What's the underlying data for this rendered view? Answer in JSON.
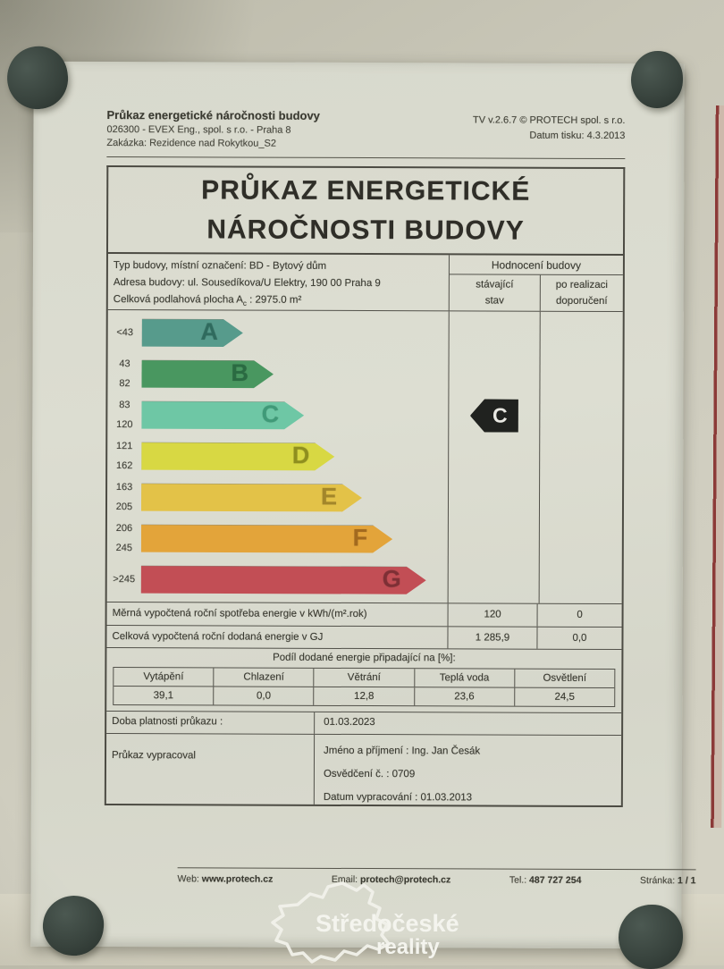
{
  "scene": {
    "wall_color": "#c8c6b7",
    "paper_color": "#d8d9cd",
    "magnet_color": "#39443e",
    "adjacent_frame_color": "#8c3a38"
  },
  "doc_header": {
    "title": "Průkaz energetické náročnosti budovy",
    "company": "026300 - EVEX Eng., spol. s r.o. - Praha 8",
    "order": "Zakázka: Rezidence nad Rokytkou_S2",
    "version": "TV v.2.6.7 © PROTECH spol. s r.o.",
    "print_date": "Datum tisku: 4.3.2013"
  },
  "main_title": {
    "line1": "PRŮKAZ ENERGETICKÉ",
    "line2": "NÁROČNOSTI BUDOVY"
  },
  "building_info": {
    "type_line": "Typ budovy, místní označení: BD - Bytový dům",
    "address_line": "Adresa budovy: ul. Sousedíkova/U Elektry, 190 00 Praha 9",
    "area_prefix": "Celková podlahová plocha A",
    "area_sub": "c",
    "area_suffix": " : 2975.0 m²"
  },
  "rating_header": {
    "title": "Hodnocení budovy",
    "current_line1": "stávající",
    "current_line2": "stav",
    "recommended_line1": "po realizaci",
    "recommended_line2": "doporučení"
  },
  "chart_data": {
    "type": "bar",
    "title": "Energetická náročnost budovy — třídy A až G v kWh/(m².rok)",
    "categories": [
      "A",
      "B",
      "C",
      "D",
      "E",
      "F",
      "G"
    ],
    "ranges": [
      "<43",
      "43–82",
      "83–120",
      "121–162",
      "163–205",
      "206–245",
      ">245"
    ],
    "colors": [
      "#579b8c",
      "#499760",
      "#6ec7a5",
      "#d8d843",
      "#e3c248",
      "#e3a43a",
      "#c24e55"
    ],
    "letter_colors": [
      "#2f6b5e",
      "#2a6b42",
      "#3f9a78",
      "#8f8f1e",
      "#a3862a",
      "#a36a1e",
      "#7e2f35"
    ],
    "bar_width_pct": [
      33,
      43,
      53,
      63,
      72,
      82,
      93
    ],
    "current_class": "C",
    "current_marker_color": "#20221f",
    "current_value_kwh_m2_rok": 120
  },
  "energy_rows": [
    {
      "label": "Měrná vypočtená roční spotřeba energie v kWh/(m².rok)",
      "current": "120",
      "recommended": "0"
    },
    {
      "label": "Celková vypočtená roční dodaná energie v GJ",
      "current": "1 285,9",
      "recommended": "0,0"
    }
  ],
  "share_table": {
    "title": "Podíl dodané energie připadající na [%]:",
    "headers": [
      "Vytápění",
      "Chlazení",
      "Větrání",
      "Teplá voda",
      "Osvětlení"
    ],
    "values": [
      "39,1",
      "0,0",
      "12,8",
      "23,6",
      "24,5"
    ]
  },
  "validity": {
    "label": "Doba platnosti průkazu :",
    "value": "01.03.2023"
  },
  "author": {
    "label": "Průkaz vypracoval",
    "name_line": "Jméno a příjmení : Ing. Jan Česák",
    "cert_line": "Osvědčení č. : 0709",
    "date_line": "Datum vypracování : 01.03.2013"
  },
  "doc_footer": {
    "web_label": "Web:",
    "web_value": "www.protech.cz",
    "email_label": "Email:",
    "email_value": "protech@protech.cz",
    "tel_label": "Tel.:",
    "tel_value": "487 727 254",
    "page_label": "Stránka:",
    "page_value": "1 / 1"
  },
  "logo": {
    "line1": "Středočeské",
    "line2": "reality"
  }
}
